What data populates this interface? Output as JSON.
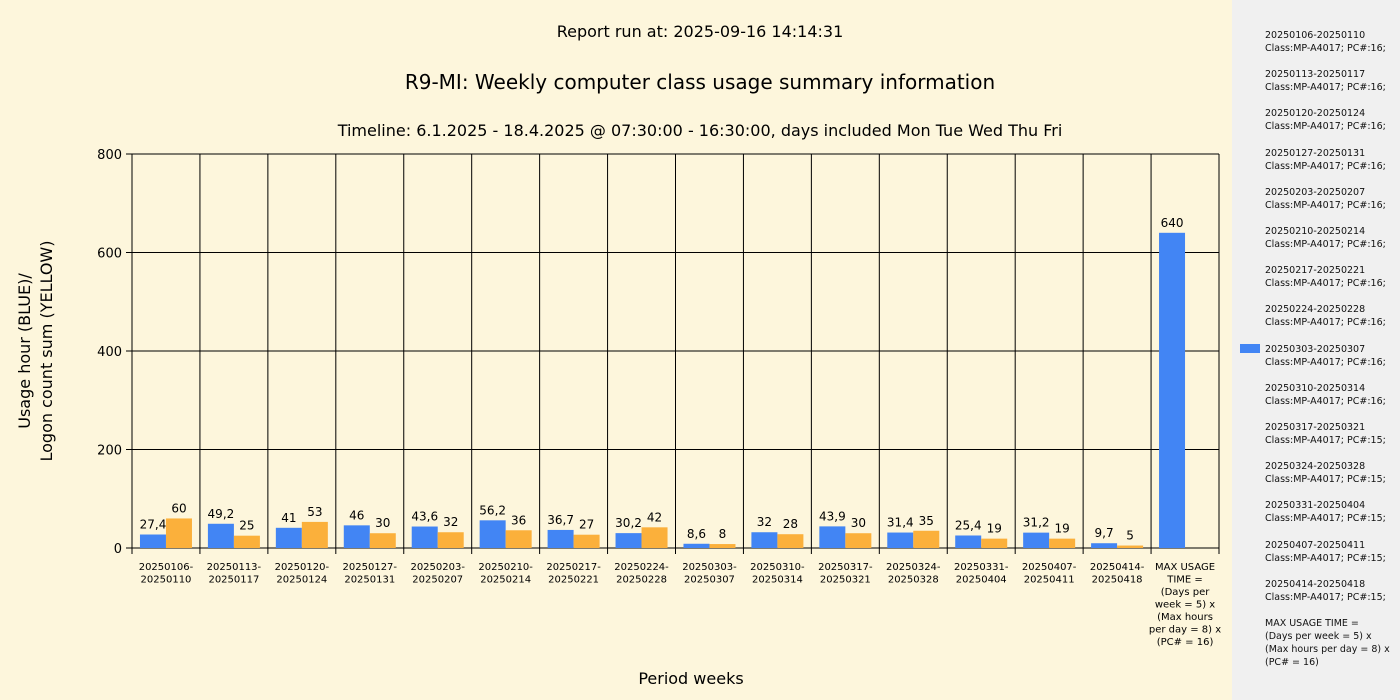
{
  "report_run": "Report run at: 2025-09-16 14:14:31",
  "colors": {
    "blue": "#4285f4",
    "yellow": "#fbb03b",
    "background": "#fdf6dc",
    "legend_bg": "#f0f0f0"
  },
  "chart_data": {
    "type": "bar",
    "title": "R9-MI: Weekly computer class usage summary information",
    "subtitle": "Timeline:  6.1.2025  - 18.4.2025  @  07:30:00 -  16:30:00, days included Mon Tue Wed Thu Fri",
    "xlabel": "Period weeks",
    "ylabel_line1": "Usage hour (BLUE)/",
    "ylabel_line2": "Logon count sum (YELLOW)",
    "ylim": [
      0,
      800
    ],
    "yticks": [
      "0",
      "200",
      "400",
      "600",
      "800"
    ],
    "grid": true,
    "legend_position": "right",
    "categories": [
      "20250106-\n20250110",
      "20250113-\n20250117",
      "20250120-\n20250124",
      "20250127-\n20250131",
      "20250203-\n20250207",
      "20250210-\n20250214",
      "20250217-\n20250221",
      "20250224-\n20250228",
      "20250303-\n20250307",
      "20250310-\n20250314",
      "20250317-\n20250321",
      "20250324-\n20250328",
      "20250331-\n20250404",
      "20250407-\n20250411",
      "20250414-\n20250418",
      "MAX USAGE\nTIME =\n(Days per\nweek = 5) x\n(Max hours\nper day = 8) x\n(PC# = 16)"
    ],
    "series": [
      {
        "color": "#4285f4",
        "values": [
          27.4,
          49.2,
          41,
          46,
          43.6,
          56.2,
          36.7,
          30.2,
          8.6,
          32,
          43.9,
          31.4,
          25.4,
          31.2,
          9.7,
          640
        ],
        "labels": [
          "27,4",
          "49,2",
          "41",
          "46",
          "43,6",
          "56,2",
          "36,7",
          "30,2",
          "8,6",
          "32",
          "43,9",
          "31,4",
          "25,4",
          "31,2",
          "9,7",
          "640"
        ]
      },
      {
        "color": "#fbb03b",
        "values": [
          60,
          25,
          53,
          30,
          32,
          36,
          27,
          42,
          8,
          28,
          30,
          35,
          19,
          19,
          5,
          null
        ],
        "labels": [
          "60",
          "25",
          "53",
          "30",
          "32",
          "36",
          "27",
          "42",
          "8",
          "28",
          "30",
          "35",
          "19",
          "19",
          "5",
          ""
        ]
      }
    ]
  },
  "legend": {
    "items": [
      "20250106-20250110\nClass:MP-A4017; PC#:16;",
      "20250113-20250117\nClass:MP-A4017; PC#:16;",
      "20250120-20250124\nClass:MP-A4017; PC#:16;",
      "20250127-20250131\nClass:MP-A4017; PC#:16;",
      "20250203-20250207\nClass:MP-A4017; PC#:16;",
      "20250210-20250214\nClass:MP-A4017; PC#:16;",
      "20250217-20250221\nClass:MP-A4017; PC#:16;",
      "20250224-20250228\nClass:MP-A4017; PC#:16;",
      "20250303-20250307\nClass:MP-A4017; PC#:16;",
      "20250310-20250314\nClass:MP-A4017; PC#:16;",
      "20250317-20250321\nClass:MP-A4017; PC#:15;",
      "20250324-20250328\nClass:MP-A4017; PC#:15;",
      "20250331-20250404\nClass:MP-A4017; PC#:15;",
      "20250407-20250411\nClass:MP-A4017; PC#:15;",
      "20250414-20250418\nClass:MP-A4017; PC#:15;",
      "MAX USAGE TIME =\n (Days per week = 5) x (Max hours per day = 8) x (PC# = 16)"
    ]
  }
}
